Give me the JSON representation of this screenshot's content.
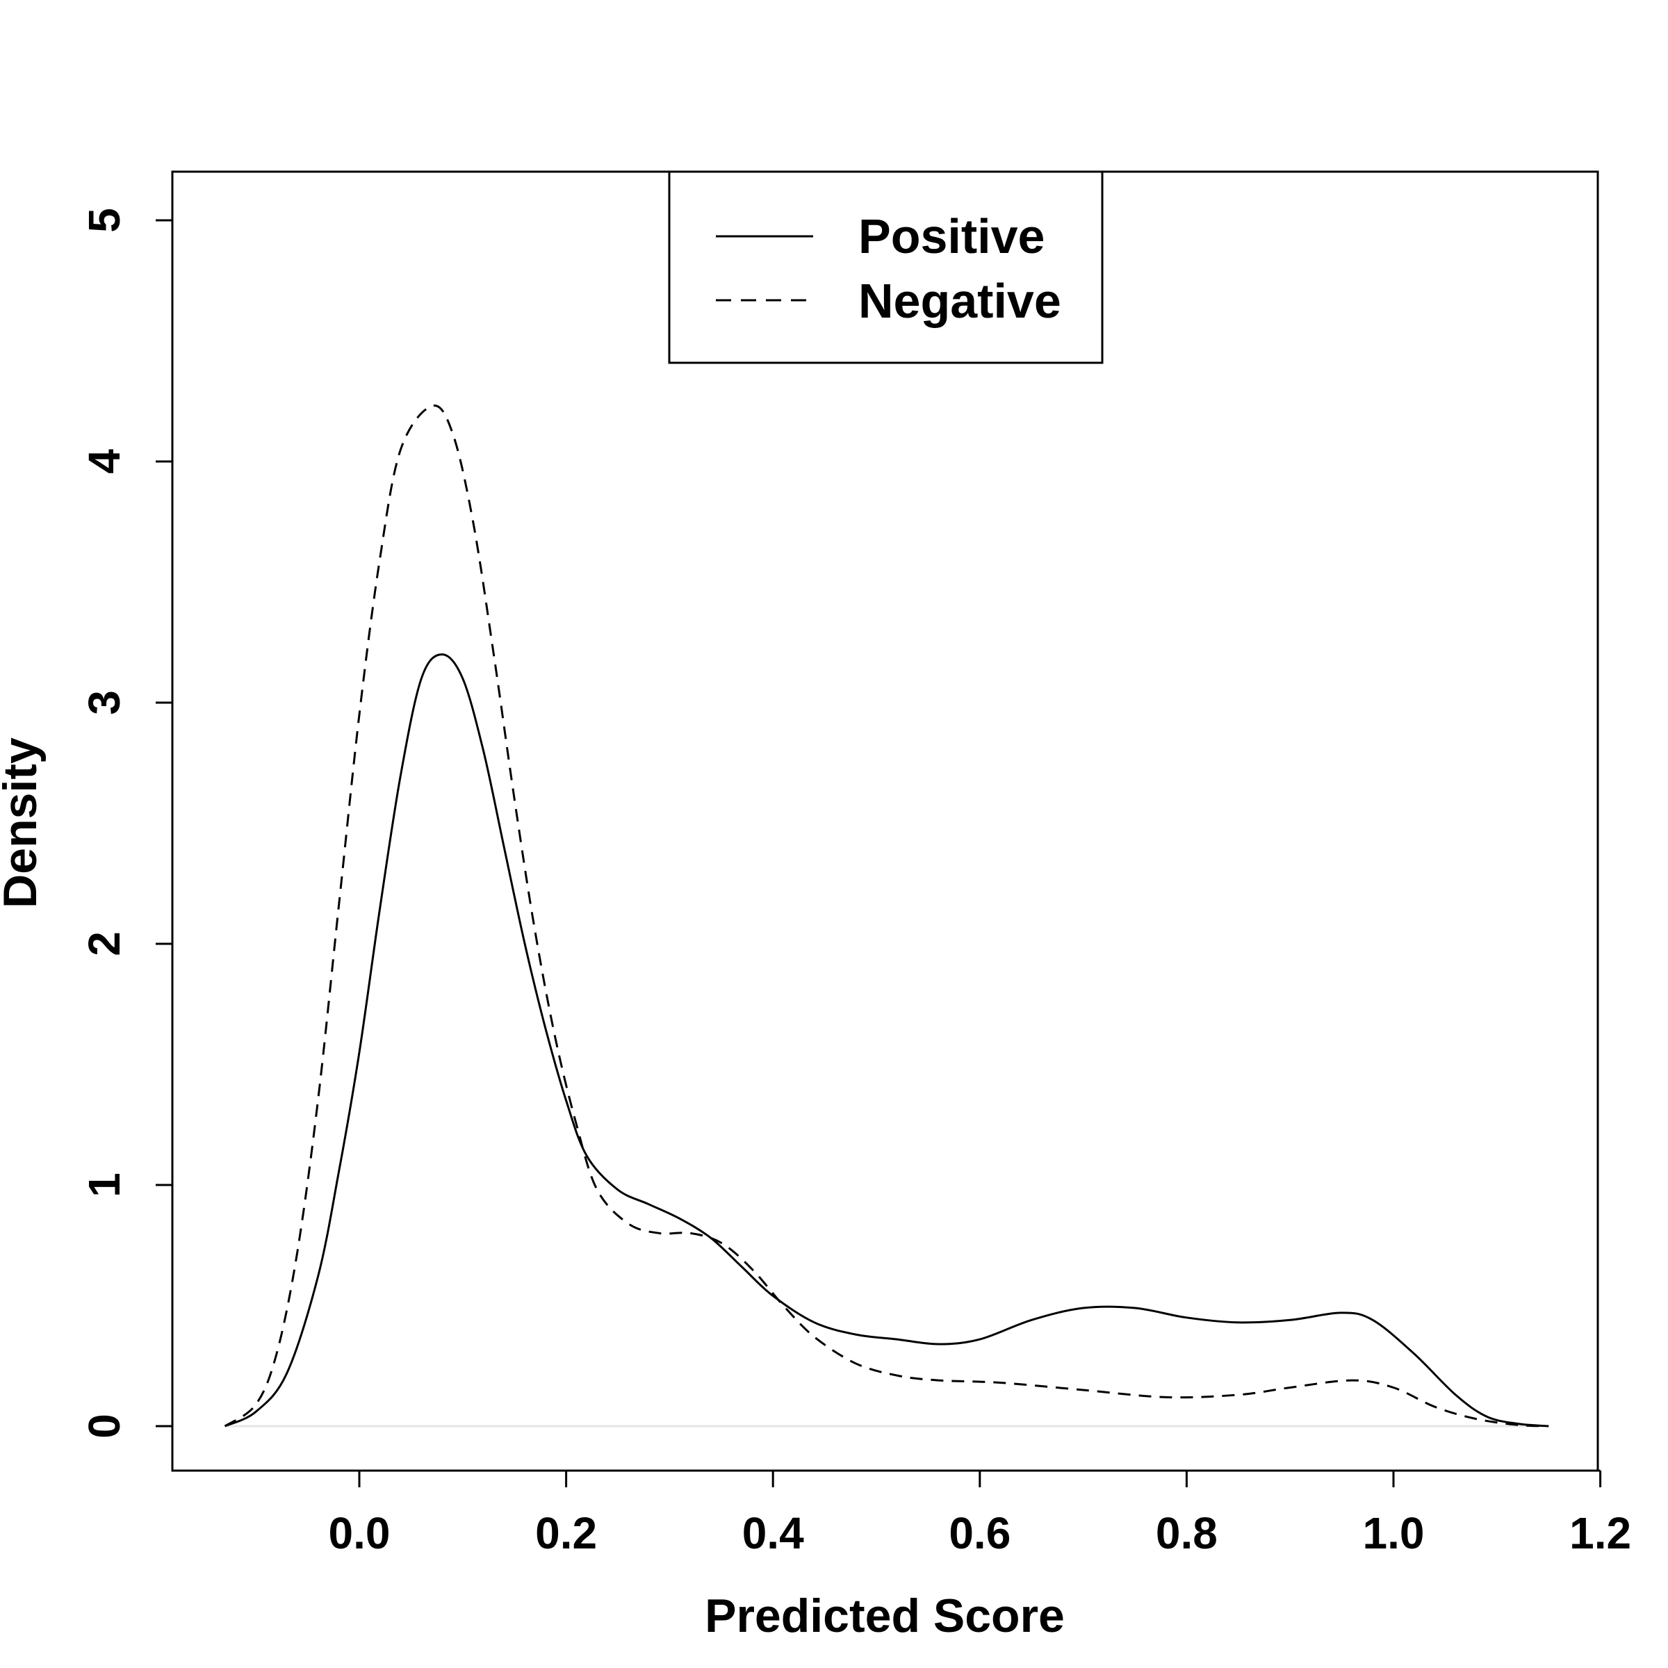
{
  "chart_data": {
    "type": "line",
    "title": "",
    "xlabel": "Predicted Score",
    "ylabel": "Density",
    "xlim": [
      -0.18,
      1.2
    ],
    "ylim": [
      -0.2,
      5.2
    ],
    "x_ticks": [
      "0.0",
      "0.2",
      "0.4",
      "0.6",
      "0.8",
      "1.0",
      "1.2"
    ],
    "y_ticks": [
      "0",
      "1",
      "2",
      "3",
      "4",
      "5"
    ],
    "grid": false,
    "legend_position": "top-center",
    "series": [
      {
        "name": "Positive",
        "line_style": "solid",
        "color": "#000000",
        "points": [
          [
            -0.13,
            0.0
          ],
          [
            -0.1,
            0.06
          ],
          [
            -0.07,
            0.22
          ],
          [
            -0.04,
            0.62
          ],
          [
            -0.02,
            1.05
          ],
          [
            0.0,
            1.55
          ],
          [
            0.02,
            2.15
          ],
          [
            0.04,
            2.7
          ],
          [
            0.06,
            3.1
          ],
          [
            0.08,
            3.2
          ],
          [
            0.1,
            3.1
          ],
          [
            0.12,
            2.8
          ],
          [
            0.14,
            2.4
          ],
          [
            0.16,
            2.0
          ],
          [
            0.18,
            1.65
          ],
          [
            0.2,
            1.35
          ],
          [
            0.22,
            1.12
          ],
          [
            0.25,
            0.98
          ],
          [
            0.28,
            0.92
          ],
          [
            0.31,
            0.86
          ],
          [
            0.34,
            0.78
          ],
          [
            0.37,
            0.66
          ],
          [
            0.4,
            0.54
          ],
          [
            0.44,
            0.43
          ],
          [
            0.48,
            0.38
          ],
          [
            0.52,
            0.36
          ],
          [
            0.56,
            0.34
          ],
          [
            0.6,
            0.36
          ],
          [
            0.65,
            0.44
          ],
          [
            0.7,
            0.49
          ],
          [
            0.75,
            0.49
          ],
          [
            0.8,
            0.45
          ],
          [
            0.85,
            0.43
          ],
          [
            0.9,
            0.44
          ],
          [
            0.95,
            0.47
          ],
          [
            0.98,
            0.44
          ],
          [
            1.02,
            0.3
          ],
          [
            1.06,
            0.13
          ],
          [
            1.09,
            0.04
          ],
          [
            1.12,
            0.01
          ],
          [
            1.15,
            0.0
          ]
        ]
      },
      {
        "name": "Negative",
        "line_style": "dashed",
        "color": "#000000",
        "points": [
          [
            -0.13,
            0.0
          ],
          [
            -0.1,
            0.09
          ],
          [
            -0.08,
            0.3
          ],
          [
            -0.06,
            0.72
          ],
          [
            -0.04,
            1.35
          ],
          [
            -0.02,
            2.15
          ],
          [
            0.0,
            2.95
          ],
          [
            0.02,
            3.6
          ],
          [
            0.04,
            4.05
          ],
          [
            0.07,
            4.23
          ],
          [
            0.09,
            4.12
          ],
          [
            0.11,
            3.75
          ],
          [
            0.13,
            3.2
          ],
          [
            0.15,
            2.6
          ],
          [
            0.17,
            2.05
          ],
          [
            0.19,
            1.6
          ],
          [
            0.21,
            1.25
          ],
          [
            0.23,
            0.98
          ],
          [
            0.26,
            0.84
          ],
          [
            0.29,
            0.8
          ],
          [
            0.32,
            0.8
          ],
          [
            0.35,
            0.76
          ],
          [
            0.38,
            0.65
          ],
          [
            0.41,
            0.5
          ],
          [
            0.44,
            0.37
          ],
          [
            0.48,
            0.26
          ],
          [
            0.52,
            0.21
          ],
          [
            0.56,
            0.19
          ],
          [
            0.62,
            0.18
          ],
          [
            0.7,
            0.15
          ],
          [
            0.78,
            0.12
          ],
          [
            0.85,
            0.13
          ],
          [
            0.9,
            0.16
          ],
          [
            0.96,
            0.19
          ],
          [
            1.0,
            0.16
          ],
          [
            1.04,
            0.08
          ],
          [
            1.08,
            0.03
          ],
          [
            1.12,
            0.005
          ],
          [
            1.15,
            0.0
          ]
        ]
      }
    ]
  }
}
